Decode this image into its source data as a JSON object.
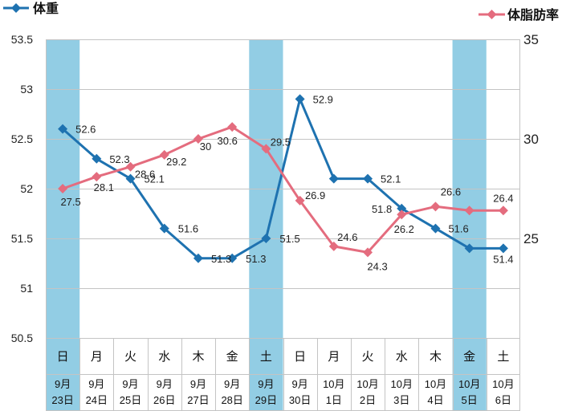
{
  "chart_data": {
    "type": "line",
    "categories": [
      {
        "weekday": "日",
        "month": "9月",
        "day": "23日"
      },
      {
        "weekday": "月",
        "month": "9月",
        "day": "24日"
      },
      {
        "weekday": "火",
        "month": "9月",
        "day": "25日"
      },
      {
        "weekday": "水",
        "month": "9月",
        "day": "26日"
      },
      {
        "weekday": "木",
        "month": "9月",
        "day": "27日"
      },
      {
        "weekday": "金",
        "month": "9月",
        "day": "28日"
      },
      {
        "weekday": "土",
        "month": "9月",
        "day": "29日"
      },
      {
        "weekday": "日",
        "month": "9月",
        "day": "30日"
      },
      {
        "weekday": "月",
        "month": "10月",
        "day": "1日"
      },
      {
        "weekday": "火",
        "month": "10月",
        "day": "2日"
      },
      {
        "weekday": "水",
        "month": "10月",
        "day": "3日"
      },
      {
        "weekday": "木",
        "month": "10月",
        "day": "4日"
      },
      {
        "weekday": "金",
        "month": "10月",
        "day": "5日"
      },
      {
        "weekday": "土",
        "month": "10月",
        "day": "6日"
      }
    ],
    "highlighted_categories": [
      0,
      6,
      12
    ],
    "highlight_color": "#92cde4",
    "y_left": {
      "min": 50.5,
      "max": 53.5,
      "ticks": [
        53.5,
        53,
        52.5,
        52,
        51.5,
        51,
        50.5
      ]
    },
    "y_right": {
      "min": 20,
      "max": 35,
      "ticks": [
        35,
        30,
        25
      ]
    },
    "grid": "horizontal",
    "legend_position": "top",
    "series": [
      {
        "name": "体重",
        "axis": "left",
        "color": "#1e72b0",
        "marker": "diamond",
        "values": [
          52.6,
          52.3,
          52.1,
          51.6,
          51.3,
          51.3,
          51.5,
          52.9,
          52.1,
          52.1,
          51.8,
          51.6,
          51.4,
          51.4
        ],
        "data_labels": [
          "52.6",
          "52.3",
          "52.1",
          "51.6",
          "51.3",
          "51.3",
          "51.5",
          "52.9",
          null,
          "52.1",
          "51.8",
          "51.6",
          null,
          "51.4"
        ]
      },
      {
        "name": "体脂肪率",
        "axis": "right",
        "color": "#e46c7e",
        "marker": "diamond",
        "values": [
          27.5,
          28.1,
          28.6,
          29.2,
          30,
          30.6,
          29.5,
          26.9,
          24.6,
          24.3,
          26.2,
          26.6,
          26.4,
          26.4
        ],
        "data_labels": [
          "27.5",
          "28.1",
          "28.6",
          "29.2",
          "30",
          "30.6",
          "29.5",
          "26.9",
          "24.6",
          "24.3",
          "26.2",
          "26.6",
          null,
          "26.4"
        ]
      }
    ]
  }
}
